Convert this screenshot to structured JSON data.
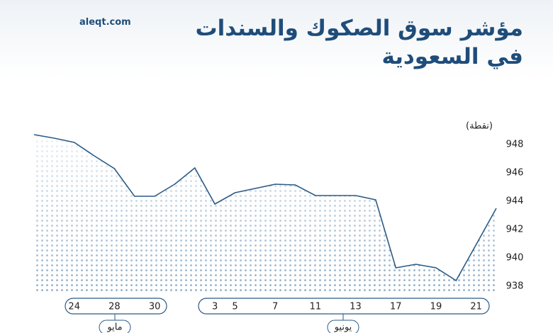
{
  "chart_data": {
    "type": "line",
    "title": "مؤشر سوق الصكوك والسندات\nفي السعودية",
    "source": "aleqt.com",
    "y_label": "(نقطة)",
    "color": "#2b5a85",
    "categories": [
      null,
      null,
      "24",
      null,
      "28",
      null,
      "30",
      null,
      null,
      "3",
      "5",
      null,
      "7",
      null,
      "11",
      null,
      "13",
      null,
      "17",
      null,
      "19",
      null,
      "21",
      null
    ],
    "months": [
      "مايو",
      "يونيو"
    ],
    "values": [
      948.7,
      948.45,
      948.15,
      947.2,
      946.3,
      944.35,
      944.35,
      945.2,
      946.35,
      943.8,
      944.6,
      944.9,
      945.2,
      945.15,
      944.4,
      944.4,
      944.4,
      944.1,
      939.3,
      939.55,
      939.3,
      938.4,
      940.95,
      943.5
    ],
    "ylim": [
      937.6,
      949.6
    ],
    "yticks": [
      938,
      940,
      942,
      944,
      946,
      948
    ],
    "grid": false
  }
}
